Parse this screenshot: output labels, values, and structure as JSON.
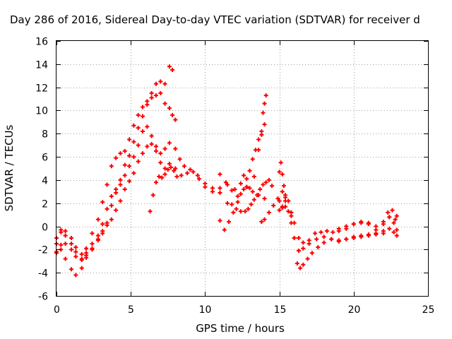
{
  "chart_data": {
    "type": "scatter",
    "title": "Day 286 of 2016, Sidereal Day-to-day VTEC variation (SDTVAR) for receiver d",
    "xlabel": "GPS time / hours",
    "ylabel": "SDTVAR / TECUs",
    "xlim": [
      0,
      25
    ],
    "ylim": [
      -6,
      16
    ],
    "xticks": [
      "0",
      "5",
      "10",
      "15",
      "20",
      "25"
    ],
    "yticks": [
      "-6",
      "-4",
      "-2",
      "0",
      "2",
      "4",
      "6",
      "8",
      "10",
      "12",
      "14",
      "16"
    ],
    "grid": true,
    "legend": "none",
    "marker": "+",
    "color": "#ff0000",
    "series": [
      {
        "x": [
          0.0,
          0.3,
          0.6,
          1.0,
          1.3,
          1.7,
          2.0,
          2.4,
          2.8,
          3.1,
          3.4,
          3.7,
          4.0,
          4.3,
          4.6,
          4.9,
          5.2,
          5.5,
          5.8,
          6.1,
          6.4,
          6.7,
          7.0,
          7.3,
          7.6,
          7.8,
          8.0
        ],
        "y": [
          -1.5,
          -0.3,
          -0.4,
          -1.0,
          -1.8,
          -2.4,
          -1.9,
          -0.6,
          0.6,
          2.1,
          3.6,
          5.2,
          5.9,
          6.3,
          6.5,
          7.5,
          8.7,
          9.6,
          10.3,
          10.8,
          11.1,
          11.3,
          11.5,
          10.6,
          10.2,
          9.6,
          9.2
        ]
      },
      {
        "x": [
          0.0,
          0.3,
          0.6,
          1.0,
          1.3,
          1.7,
          2.0,
          2.4,
          2.8,
          3.1,
          3.4,
          3.7,
          4.0,
          4.3,
          4.6,
          4.9,
          5.2,
          5.5,
          5.8,
          6.1,
          6.4,
          6.7,
          7.0,
          7.3,
          7.6,
          7.8
        ],
        "y": [
          -1.0,
          -0.5,
          -0.8,
          -1.5,
          -2.2,
          -2.8,
          -2.3,
          -1.5,
          -0.8,
          0.2,
          1.5,
          2.6,
          3.2,
          4.0,
          5.3,
          6.1,
          7.3,
          8.5,
          9.5,
          10.5,
          11.5,
          12.3,
          12.5,
          12.3,
          13.8,
          13.5
        ]
      },
      {
        "x": [
          0.0,
          0.3,
          0.6,
          1.0,
          1.3,
          1.7,
          2.0,
          2.4,
          2.8,
          3.1,
          3.4,
          3.7,
          4.0,
          4.3,
          4.6,
          4.9,
          5.2,
          5.5,
          5.8,
          6.1,
          6.4,
          6.7,
          7.0,
          7.3,
          7.6,
          8.0,
          8.3,
          8.6,
          9.0,
          9.5,
          10.0,
          10.5,
          11.0,
          11.5,
          12.0,
          12.4,
          12.8,
          13.2,
          13.6,
          14.0
        ],
        "y": [
          -2.3,
          -1.6,
          -1.5,
          -2.0,
          -2.6,
          -2.9,
          -2.5,
          -1.9,
          -1.1,
          -0.6,
          0.3,
          1.8,
          2.9,
          3.6,
          4.4,
          5.2,
          6.0,
          7.0,
          8.2,
          8.6,
          7.8,
          6.9,
          6.3,
          6.7,
          7.2,
          6.7,
          5.8,
          5.2,
          4.9,
          4.4,
          3.4,
          3.0,
          3.3,
          3.6,
          3.2,
          3.7,
          3.4,
          3.0,
          2.7,
          2.4
        ]
      },
      {
        "x": [
          0.0,
          0.3,
          0.6,
          1.0,
          1.3,
          1.7,
          2.0,
          2.4,
          2.8,
          3.1,
          3.4,
          3.7,
          4.0,
          4.3,
          4.6,
          4.9,
          5.2,
          5.5,
          5.8,
          6.1,
          6.4,
          6.7,
          7.0,
          7.3,
          7.6,
          8.0,
          8.4,
          8.8,
          9.2,
          9.6,
          10.0,
          10.5,
          11.0
        ],
        "y": [
          -2.2,
          -2.0,
          -2.8,
          -3.7,
          -4.2,
          -3.6,
          -2.7,
          -2.0,
          -1.2,
          -0.4,
          0.1,
          0.6,
          1.4,
          2.2,
          3.2,
          3.9,
          4.6,
          5.6,
          6.3,
          6.9,
          7.1,
          6.5,
          5.5,
          5.0,
          5.4,
          5.0,
          4.4,
          4.6,
          4.7,
          4.1,
          3.7,
          3.3,
          2.9
        ]
      },
      {
        "x": [
          6.3,
          6.5,
          6.7,
          6.9,
          7.1,
          7.3,
          7.5,
          7.7,
          7.9,
          8.1
        ],
        "y": [
          1.3,
          2.7,
          3.8,
          4.3,
          4.2,
          4.5,
          4.9,
          5.1,
          4.8,
          4.3
        ]
      },
      {
        "x": [
          11.0,
          11.3,
          11.6,
          11.9,
          12.2,
          12.4,
          12.6,
          12.8,
          13.0,
          13.2,
          13.4,
          13.6,
          13.8,
          14.0
        ],
        "y": [
          0.5,
          -0.3,
          0.4,
          1.2,
          2.1,
          2.8,
          3.2,
          3.4,
          4.8,
          5.8,
          6.6,
          7.5,
          8.2,
          8.8
        ]
      },
      {
        "x": [
          11.0,
          11.4,
          11.8,
          12.2,
          12.6,
          12.8,
          13.0,
          13.3,
          13.6,
          13.8,
          13.9,
          14.0,
          14.1
        ],
        "y": [
          4.5,
          3.8,
          3.1,
          2.6,
          4.4,
          4.1,
          3.3,
          4.3,
          6.6,
          7.9,
          9.8,
          10.6,
          11.3
        ]
      },
      {
        "x": [
          11.5,
          11.8,
          12.1,
          12.4,
          12.7,
          12.9,
          13.1,
          13.3,
          13.5,
          13.7,
          13.9,
          14.1,
          14.3,
          14.5
        ],
        "y": [
          2.0,
          1.9,
          1.5,
          1.3,
          1.3,
          1.5,
          1.9,
          2.3,
          2.7,
          3.2,
          3.6,
          3.8,
          4.0,
          3.5
        ]
      },
      {
        "x": [
          13.8,
          14.0,
          14.3,
          14.6,
          14.9,
          15.2,
          15.4,
          15.6,
          15.8,
          16.0,
          16.3,
          16.6,
          17.0,
          17.5,
          18.0,
          18.5,
          19.0,
          19.5,
          20.0,
          20.5,
          21.0,
          21.5,
          22.0,
          22.4,
          22.8
        ],
        "y": [
          0.4,
          0.6,
          1.2,
          1.8,
          2.4,
          3.0,
          2.7,
          2.2,
          0.3,
          -1.0,
          -2.1,
          -1.9,
          -1.5,
          -1.1,
          -0.9,
          -1.1,
          -1.3,
          -1.1,
          -0.9,
          -0.8,
          -0.8,
          -0.7,
          0.2,
          0.8,
          0.6
        ]
      },
      {
        "x": [
          15.0,
          15.2,
          15.4,
          15.6,
          15.8,
          16.0,
          16.2,
          16.4,
          16.6,
          16.9,
          17.2,
          17.6,
          18.0,
          18.5,
          19.0,
          19.5,
          20.0,
          20.5,
          21.0,
          21.5,
          22.0,
          22.3,
          22.6,
          22.9
        ],
        "y": [
          1.4,
          1.7,
          2.2,
          2.2,
          1.2,
          -1.0,
          -3.2,
          -3.6,
          -3.3,
          -2.8,
          -2.3,
          -1.8,
          -1.4,
          -1.1,
          -1.2,
          -1.1,
          -1.0,
          -0.9,
          -0.7,
          -0.6,
          -0.4,
          1.2,
          1.4,
          0.9
        ]
      },
      {
        "x": [
          15.0,
          15.2,
          15.4,
          15.6,
          15.8,
          16.0,
          16.3,
          16.6,
          17.0,
          17.4,
          17.8,
          18.2,
          18.6,
          19.0,
          19.5,
          20.0,
          20.5,
          21.0,
          21.5,
          22.0,
          22.4,
          22.7,
          22.9
        ],
        "y": [
          2.2,
          1.6,
          1.7,
          1.3,
          0.9,
          0.3,
          -1.0,
          -1.4,
          -1.2,
          -0.6,
          -0.5,
          -0.4,
          -0.5,
          -0.2,
          0.0,
          0.2,
          0.3,
          0.3,
          -0.3,
          -0.6,
          -0.2,
          -0.5,
          -0.8
        ]
      },
      {
        "x": [
          15.0,
          15.1,
          15.2,
          15.3,
          15.4
        ],
        "y": [
          4.7,
          5.5,
          4.5,
          3.5,
          2.5
        ]
      },
      {
        "x": [
          19.0,
          19.5,
          20.0,
          20.5,
          21.0,
          21.5,
          22.0,
          22.4,
          22.7,
          22.9
        ],
        "y": [
          -0.4,
          -0.2,
          0.2,
          0.4,
          0.2,
          0.0,
          0.4,
          0.8,
          0.3,
          -0.3
        ]
      }
    ]
  }
}
